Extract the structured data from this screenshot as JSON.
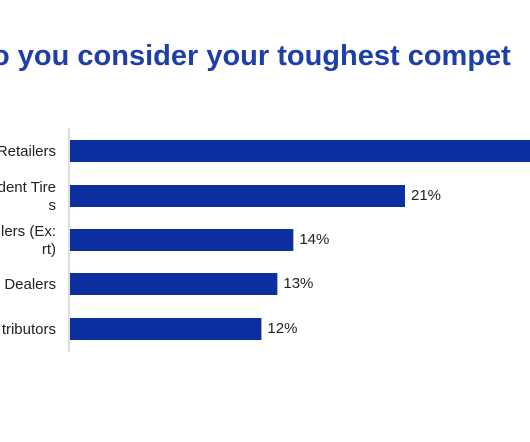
{
  "title": "o you consider your toughest compet",
  "chart_data": {
    "type": "bar",
    "orientation": "horizontal",
    "categories": [
      "Retailers",
      "dent Tire\ns",
      "ilers (Ex:\nrt)",
      "Dealers",
      "tributors"
    ],
    "values": [
      null,
      21,
      14,
      13,
      12
    ],
    "value_labels": [
      "",
      "21%",
      "14%",
      "13%",
      "12%"
    ],
    "bar_color": "#0c2fa0",
    "axis_color": "#bdbdbd"
  }
}
